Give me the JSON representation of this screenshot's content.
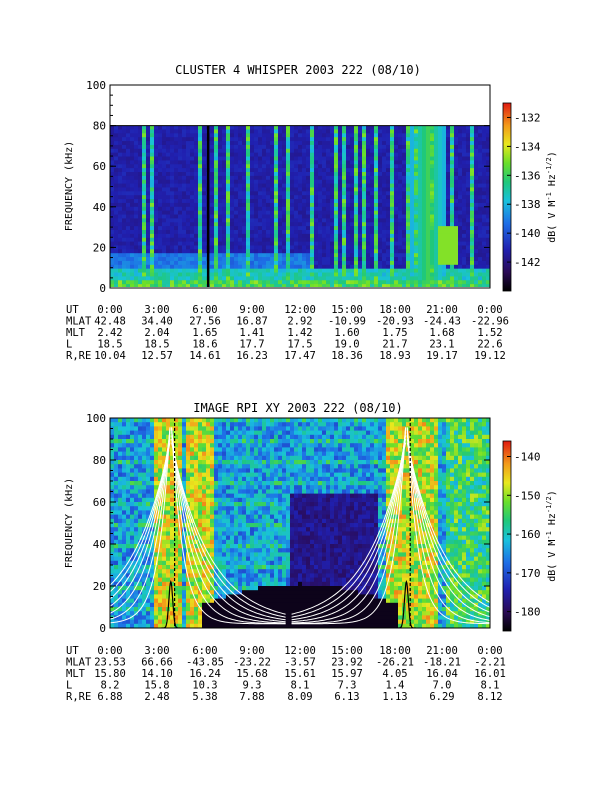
{
  "chart_data": [
    {
      "type": "heatmap",
      "title": "CLUSTER 4 WHISPER 2003 222 (08/10)",
      "ylabel": "FREQUENCY (kHz)",
      "ylim": [
        0,
        100
      ],
      "yticks": [
        0,
        20,
        40,
        60,
        80,
        100
      ],
      "data_top_khz": 80,
      "colorbar": {
        "label": "dB( V M$^{-1}$ Hz$^{-1/2}$)",
        "label_parts": [
          "dB( V M",
          "-1",
          " Hz",
          "-1/2",
          ")"
        ],
        "range": [
          -144,
          -131
        ],
        "ticks": [
          -132,
          -134,
          -136,
          -138,
          -140,
          -142
        ]
      },
      "orbit_table": {
        "rows": [
          {
            "name": "UT",
            "values": [
              "0:00",
              "3:00",
              "6:00",
              "9:00",
              "12:00",
              "15:00",
              "18:00",
              "21:00",
              "0:00"
            ]
          },
          {
            "name": "MLAT",
            "values": [
              "42.48",
              "34.40",
              "27.56",
              "16.87",
              "2.92",
              "-10.99",
              "-20.93",
              "-24.43",
              "-22.96"
            ]
          },
          {
            "name": "MLT",
            "values": [
              "2.42",
              "2.04",
              "1.65",
              "1.41",
              "1.42",
              "1.60",
              "1.75",
              "1.68",
              "1.52"
            ]
          },
          {
            "name": "L",
            "values": [
              "18.5",
              "18.5",
              "18.6",
              "17.7",
              "17.5",
              "19.0",
              "21.7",
              "23.1",
              "22.6"
            ]
          },
          {
            "name": "R,RE",
            "values": [
              "10.04",
              "12.57",
              "14.61",
              "16.23",
              "17.47",
              "18.36",
              "18.93",
              "19.17",
              "19.12"
            ]
          }
        ]
      }
    },
    {
      "type": "heatmap",
      "title": "IMAGE RPI XY 2003 222 (08/10)",
      "ylabel": "FREQUENCY (kHz)",
      "ylim": [
        0,
        100
      ],
      "yticks": [
        0,
        20,
        40,
        60,
        80,
        100
      ],
      "colorbar": {
        "label": "dB( V M$^{-1}$ Hz$^{-1/2}$)",
        "label_parts": [
          "dB( V M",
          "-1",
          " Hz",
          "-1/2",
          ")"
        ],
        "range": [
          -185,
          -136
        ],
        "ticks": [
          -140,
          -150,
          -160,
          -170,
          -180
        ]
      },
      "orbit_table": {
        "rows": [
          {
            "name": "UT",
            "values": [
              "0:00",
              "3:00",
              "6:00",
              "9:00",
              "12:00",
              "15:00",
              "18:00",
              "21:00",
              "0:00"
            ]
          },
          {
            "name": "MLAT",
            "values": [
              "23.53",
              "66.66",
              "-43.85",
              "-23.22",
              "-3.57",
              "23.92",
              "-26.21",
              "-18.21",
              "-2.21"
            ]
          },
          {
            "name": "MLT",
            "values": [
              "15.80",
              "14.10",
              "16.24",
              "15.68",
              "15.61",
              "15.97",
              "4.05",
              "16.04",
              "16.01"
            ]
          },
          {
            "name": "L",
            "values": [
              "8.2",
              "15.8",
              "10.3",
              "9.3",
              "8.1",
              "7.3",
              "1.4",
              "7.0",
              "8.1"
            ]
          },
          {
            "name": "R,RE",
            "values": [
              "6.88",
              "2.48",
              "5.38",
              "7.88",
              "8.09",
              "6.13",
              "1.13",
              "6.29",
              "8.12"
            ]
          }
        ]
      }
    }
  ]
}
